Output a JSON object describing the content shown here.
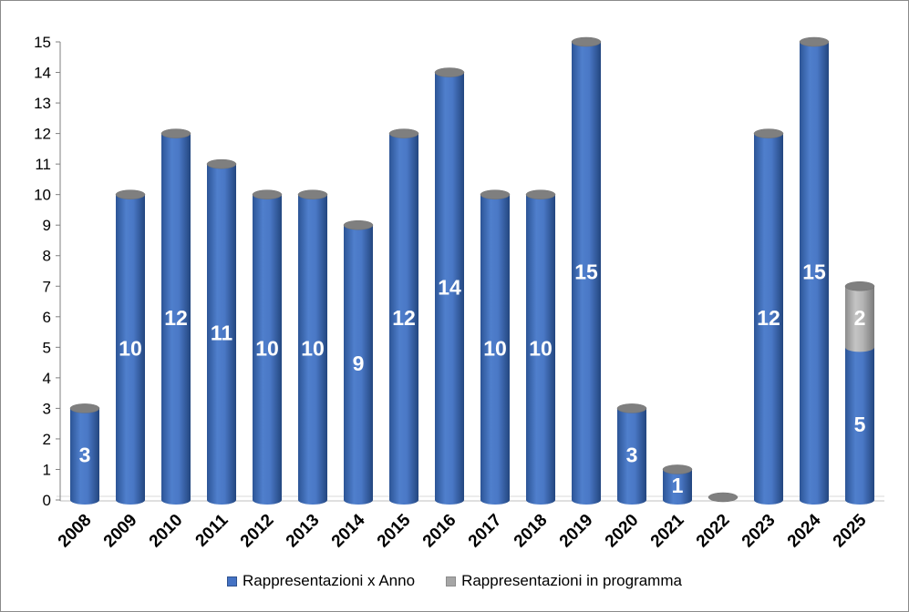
{
  "chart_data": {
    "type": "bar",
    "categories": [
      "2008",
      "2009",
      "2010",
      "2011",
      "2012",
      "2013",
      "2014",
      "2015",
      "2016",
      "2017",
      "2018",
      "2019",
      "2020",
      "2021",
      "2022",
      "2023",
      "2024",
      "2025"
    ],
    "series": [
      {
        "name": "Rappresentazioni x Anno",
        "values": [
          3,
          10,
          12,
          11,
          10,
          10,
          9,
          12,
          14,
          10,
          10,
          15,
          3,
          1,
          0,
          12,
          15,
          5
        ],
        "color": "#4472c4"
      },
      {
        "name": "Rappresentazioni in programma",
        "values": [
          0,
          0,
          0,
          0,
          0,
          0,
          0,
          0,
          0,
          0,
          0,
          0,
          0,
          0,
          0,
          0,
          0,
          2
        ],
        "color": "#a6a6a6"
      }
    ],
    "stacked": true,
    "ylim": [
      0,
      15
    ],
    "yticks": [
      0,
      1,
      2,
      3,
      4,
      5,
      6,
      7,
      8,
      9,
      10,
      11,
      12,
      13,
      14,
      15
    ],
    "legend_position": "bottom",
    "bar_style": "cylinder"
  }
}
